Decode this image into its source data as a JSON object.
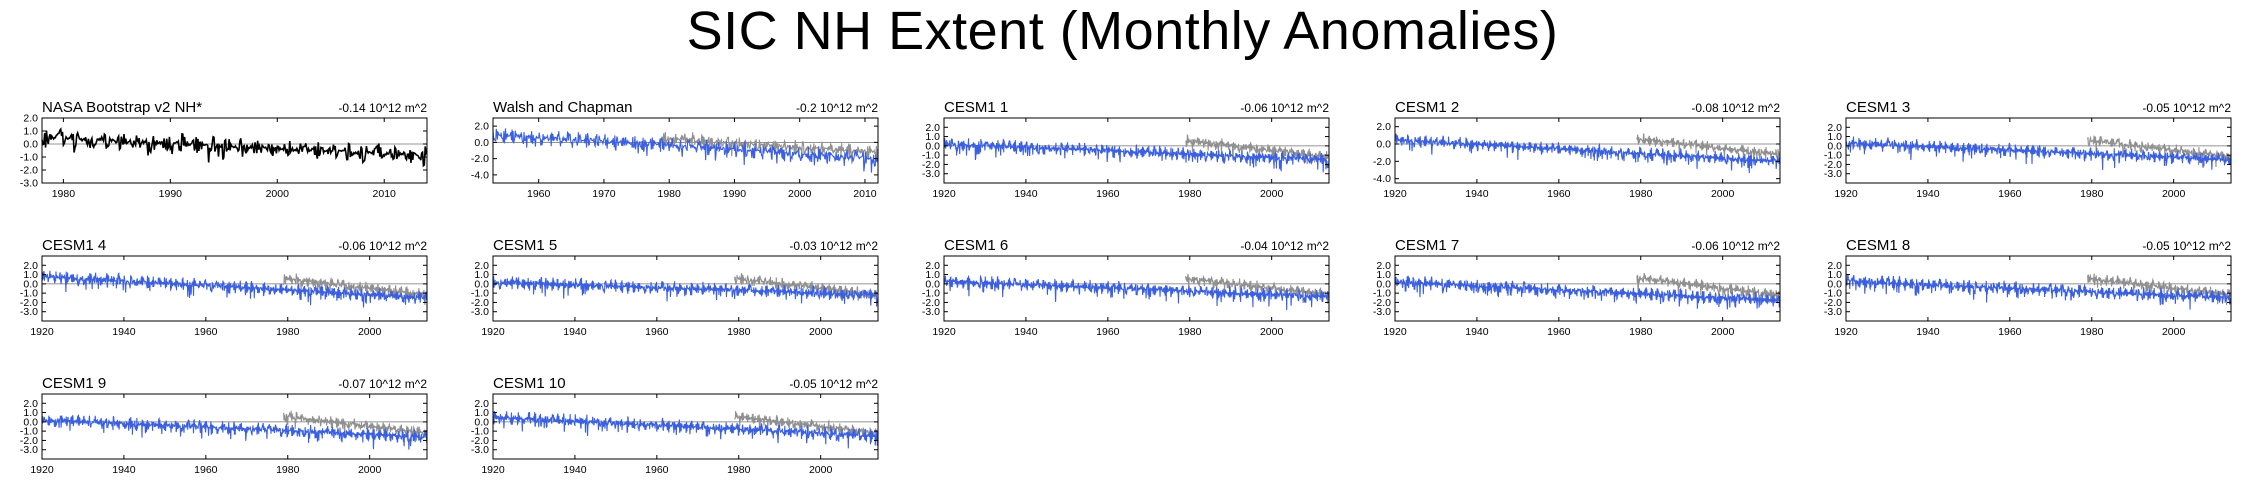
{
  "title": "SIC NH Extent (Monthly Anomalies)",
  "colors": {
    "obs": "#000000",
    "model": "#3a5fe0",
    "ref": "#909090",
    "zero": "#707070"
  },
  "chart_data": [
    {
      "type": "line",
      "title": "NASA Bootstrap v2 NH*",
      "note": "-0.14 10^12 m^2",
      "xlim": [
        1978,
        2014
      ],
      "ylim": [
        -3.0,
        2.0
      ],
      "x_ticks": [
        1980,
        1990,
        2000,
        2010
      ],
      "y_ticks": [
        "2.0",
        "1.0",
        "0.0",
        "-1.0",
        "-2.0",
        "-3.0"
      ],
      "series": [
        {
          "role": "obs",
          "start": 1978,
          "end": 2014,
          "amp": 0.8,
          "trend_start": 0.5,
          "trend_end": -0.9
        }
      ]
    },
    {
      "type": "line",
      "title": "Walsh and Chapman",
      "note": "-0.2 10^12 m^2",
      "xlim": [
        1953,
        2012
      ],
      "ylim": [
        -5.0,
        3.0
      ],
      "x_ticks": [
        1960,
        1970,
        1980,
        1990,
        2000,
        2010
      ],
      "y_ticks": [
        "2.0",
        "0.0",
        "-2.0",
        "-4.0"
      ],
      "series": [
        {
          "role": "ref",
          "start": 1979,
          "end": 2012,
          "amp": 1.0,
          "trend_start": 0.5,
          "trend_end": -1.2
        },
        {
          "role": "model",
          "start": 1953,
          "end": 2012,
          "amp": 1.1,
          "trend_start": 1.0,
          "trend_end": -2.0
        }
      ]
    },
    {
      "type": "line",
      "title": "CESM1 1",
      "note": "-0.06 10^12 m^2",
      "xlim": [
        1920,
        2014
      ],
      "ylim": [
        -4.0,
        3.0
      ],
      "x_ticks": [
        1920,
        1940,
        1960,
        1980,
        2000
      ],
      "y_ticks": [
        "2.0",
        "1.0",
        "0.0",
        "-1.0",
        "-2.0",
        "-3.0"
      ],
      "series": [
        {
          "role": "ref",
          "start": 1979,
          "end": 2014,
          "amp": 0.7,
          "trend_start": 0.6,
          "trend_end": -1.2
        },
        {
          "role": "model",
          "start": 1920,
          "end": 2014,
          "amp": 0.8,
          "trend_start": 0.2,
          "trend_end": -1.5
        }
      ]
    },
    {
      "type": "line",
      "title": "CESM1 2",
      "note": "-0.08 10^12 m^2",
      "xlim": [
        1920,
        2014
      ],
      "ylim": [
        -4.5,
        3.0
      ],
      "x_ticks": [
        1920,
        1940,
        1960,
        1980,
        2000
      ],
      "y_ticks": [
        "2.0",
        "0.0",
        "-2.0",
        "-4.0"
      ],
      "series": [
        {
          "role": "ref",
          "start": 1979,
          "end": 2014,
          "amp": 0.7,
          "trend_start": 0.6,
          "trend_end": -1.2
        },
        {
          "role": "model",
          "start": 1920,
          "end": 2014,
          "amp": 0.8,
          "trend_start": 0.5,
          "trend_end": -2.0
        }
      ]
    },
    {
      "type": "line",
      "title": "CESM1 3",
      "note": "-0.05 10^12 m^2",
      "xlim": [
        1920,
        2014
      ],
      "ylim": [
        -4.0,
        3.0
      ],
      "x_ticks": [
        1920,
        1940,
        1960,
        1980,
        2000
      ],
      "y_ticks": [
        "2.0",
        "1.0",
        "0.0",
        "-1.0",
        "-2.0",
        "-3.0"
      ],
      "series": [
        {
          "role": "ref",
          "start": 1979,
          "end": 2014,
          "amp": 0.7,
          "trend_start": 0.6,
          "trend_end": -1.2
        },
        {
          "role": "model",
          "start": 1920,
          "end": 2014,
          "amp": 0.8,
          "trend_start": 0.3,
          "trend_end": -1.5
        }
      ]
    },
    {
      "type": "line",
      "title": "CESM1 4",
      "note": "-0.06 10^12 m^2",
      "xlim": [
        1920,
        2014
      ],
      "ylim": [
        -4.0,
        3.0
      ],
      "x_ticks": [
        1920,
        1940,
        1960,
        1980,
        2000
      ],
      "y_ticks": [
        "2.0",
        "1.0",
        "0.0",
        "-1.0",
        "-2.0",
        "-3.0"
      ],
      "series": [
        {
          "role": "ref",
          "start": 1979,
          "end": 2014,
          "amp": 0.7,
          "trend_start": 0.6,
          "trend_end": -1.2
        },
        {
          "role": "model",
          "start": 1920,
          "end": 2014,
          "amp": 0.8,
          "trend_start": 0.8,
          "trend_end": -1.5
        }
      ]
    },
    {
      "type": "line",
      "title": "CESM1 5",
      "note": "-0.03 10^12 m^2",
      "xlim": [
        1920,
        2014
      ],
      "ylim": [
        -4.0,
        3.0
      ],
      "x_ticks": [
        1920,
        1940,
        1960,
        1980,
        2000
      ],
      "y_ticks": [
        "2.0",
        "1.0",
        "0.0",
        "-1.0",
        "-2.0",
        "-3.0"
      ],
      "series": [
        {
          "role": "ref",
          "start": 1979,
          "end": 2014,
          "amp": 0.7,
          "trend_start": 0.6,
          "trend_end": -1.2
        },
        {
          "role": "model",
          "start": 1920,
          "end": 2014,
          "amp": 0.8,
          "trend_start": 0.2,
          "trend_end": -1.2
        }
      ]
    },
    {
      "type": "line",
      "title": "CESM1 6",
      "note": "-0.04 10^12 m^2",
      "xlim": [
        1920,
        2014
      ],
      "ylim": [
        -4.0,
        3.0
      ],
      "x_ticks": [
        1920,
        1940,
        1960,
        1980,
        2000
      ],
      "y_ticks": [
        "2.0",
        "1.0",
        "0.0",
        "-1.0",
        "-2.0",
        "-3.0"
      ],
      "series": [
        {
          "role": "ref",
          "start": 1979,
          "end": 2014,
          "amp": 0.7,
          "trend_start": 0.6,
          "trend_end": -1.2
        },
        {
          "role": "model",
          "start": 1920,
          "end": 2014,
          "amp": 0.8,
          "trend_start": 0.3,
          "trend_end": -1.4
        }
      ]
    },
    {
      "type": "line",
      "title": "CESM1 7",
      "note": "-0.06 10^12 m^2",
      "xlim": [
        1920,
        2014
      ],
      "ylim": [
        -4.0,
        3.0
      ],
      "x_ticks": [
        1920,
        1940,
        1960,
        1980,
        2000
      ],
      "y_ticks": [
        "2.0",
        "1.0",
        "0.0",
        "-1.0",
        "-2.0",
        "-3.0"
      ],
      "series": [
        {
          "role": "ref",
          "start": 1979,
          "end": 2014,
          "amp": 0.7,
          "trend_start": 0.6,
          "trend_end": -1.2
        },
        {
          "role": "model",
          "start": 1920,
          "end": 2014,
          "amp": 0.8,
          "trend_start": 0.2,
          "trend_end": -1.8
        }
      ]
    },
    {
      "type": "line",
      "title": "CESM1 8",
      "note": "-0.05 10^12 m^2",
      "xlim": [
        1920,
        2014
      ],
      "ylim": [
        -4.0,
        3.0
      ],
      "x_ticks": [
        1920,
        1940,
        1960,
        1980,
        2000
      ],
      "y_ticks": [
        "2.0",
        "1.0",
        "0.0",
        "-1.0",
        "-2.0",
        "-3.0"
      ],
      "series": [
        {
          "role": "ref",
          "start": 1979,
          "end": 2014,
          "amp": 0.7,
          "trend_start": 0.6,
          "trend_end": -1.2
        },
        {
          "role": "model",
          "start": 1920,
          "end": 2014,
          "amp": 0.8,
          "trend_start": 0.3,
          "trend_end": -1.5
        }
      ]
    },
    {
      "type": "line",
      "title": "CESM1 9",
      "note": "-0.07 10^12 m^2",
      "xlim": [
        1920,
        2014
      ],
      "ylim": [
        -4.0,
        3.0
      ],
      "x_ticks": [
        1920,
        1940,
        1960,
        1980,
        2000
      ],
      "y_ticks": [
        "2.0",
        "1.0",
        "0.0",
        "-1.0",
        "-2.0",
        "-3.0"
      ],
      "series": [
        {
          "role": "ref",
          "start": 1979,
          "end": 2014,
          "amp": 0.7,
          "trend_start": 0.6,
          "trend_end": -1.2
        },
        {
          "role": "model",
          "start": 1920,
          "end": 2014,
          "amp": 0.8,
          "trend_start": 0.2,
          "trend_end": -1.6
        }
      ]
    },
    {
      "type": "line",
      "title": "CESM1 10",
      "note": "-0.05 10^12 m^2",
      "xlim": [
        1920,
        2014
      ],
      "ylim": [
        -4.0,
        3.0
      ],
      "x_ticks": [
        1920,
        1940,
        1960,
        1980,
        2000
      ],
      "y_ticks": [
        "2.0",
        "1.0",
        "0.0",
        "-1.0",
        "-2.0",
        "-3.0"
      ],
      "series": [
        {
          "role": "ref",
          "start": 1979,
          "end": 2014,
          "amp": 0.7,
          "trend_start": 0.6,
          "trend_end": -1.2
        },
        {
          "role": "model",
          "start": 1920,
          "end": 2014,
          "amp": 0.8,
          "trend_start": 0.5,
          "trend_end": -1.5
        }
      ]
    }
  ]
}
